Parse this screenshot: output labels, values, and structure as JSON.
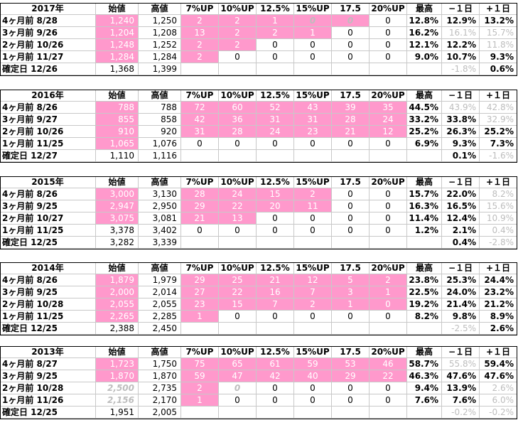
{
  "headers": {
    "start": "始値",
    "high": "高値",
    "up7": "7%UP",
    "up10": "10%UP",
    "up125": "12.5%",
    "up15": "15%UP",
    "up175": "17.5",
    "up20": "20%UP",
    "max": "最高",
    "m1": "−１日",
    "p1": "+１日"
  },
  "blocks": [
    {
      "year": "2017年",
      "rows": [
        {
          "label": "4ヶ月前  8/28",
          "start": "1,240",
          "high": "1,250",
          "up7": "2",
          "up10": "2",
          "up125": "1",
          "up15": "0",
          "up175": "0",
          "up20": "0",
          "max": "12.8%",
          "m1": "12.9%",
          "p1": "13.2%"
        },
        {
          "label": "3ヶ月前  9/26",
          "start": "1,204",
          "high": "1,208",
          "up7": "13",
          "up10": "2",
          "up125": "2",
          "up15": "1",
          "up175": "0",
          "up20": "0",
          "max": "16.2%",
          "m1": "16.1%",
          "p1": "15.7%"
        },
        {
          "label": "2ヶ月前  10/26",
          "start": "1,248",
          "high": "1,252",
          "up7": "2",
          "up10": "2",
          "up125": "0",
          "up15": "0",
          "up175": "0",
          "up20": "0",
          "max": "12.1%",
          "m1": "12.2%",
          "p1": "11.8%"
        },
        {
          "label": "1ヶ月前  11/27",
          "start": "1,284",
          "high": "1,284",
          "up7": "2",
          "up10": "0",
          "up125": "0",
          "up15": "0",
          "up175": "0",
          "up20": "0",
          "max": "9.0%",
          "m1": "10.7%",
          "p1": "9.3%"
        },
        {
          "label": "確定日  12/26",
          "start": "1,368",
          "high": "1,399",
          "up7": "",
          "up10": "",
          "up125": "",
          "up15": "",
          "up175": "",
          "up20": "",
          "max": "",
          "m1": "-1.8%",
          "p1": "0.6%"
        }
      ]
    },
    {
      "year": "2016年",
      "rows": [
        {
          "label": "4ヶ月前  8/26",
          "start": "788",
          "high": "788",
          "up7": "72",
          "up10": "60",
          "up125": "52",
          "up15": "43",
          "up175": "39",
          "up20": "35",
          "max": "44.5%",
          "m1": "43.9%",
          "p1": "42.8%"
        },
        {
          "label": "3ヶ月前  9/27",
          "start": "855",
          "high": "858",
          "up7": "42",
          "up10": "36",
          "up125": "31",
          "up15": "31",
          "up175": "28",
          "up20": "24",
          "max": "33.2%",
          "m1": "33.8%",
          "p1": "32.9%"
        },
        {
          "label": "2ヶ月前  10/26",
          "start": "910",
          "high": "920",
          "up7": "31",
          "up10": "28",
          "up125": "24",
          "up15": "23",
          "up175": "21",
          "up20": "12",
          "max": "25.2%",
          "m1": "26.3%",
          "p1": "25.2%"
        },
        {
          "label": "1ヶ月前  11/25",
          "start": "1,065",
          "high": "1,076",
          "up7": "0",
          "up10": "0",
          "up125": "0",
          "up15": "0",
          "up175": "0",
          "up20": "0",
          "max": "6.9%",
          "m1": "9.3%",
          "p1": "7.3%"
        },
        {
          "label": "確定日  12/27",
          "start": "1,110",
          "high": "1,116",
          "up7": "",
          "up10": "",
          "up125": "",
          "up15": "",
          "up175": "",
          "up20": "",
          "max": "",
          "m1": "0.1%",
          "p1": "-1.6%"
        }
      ]
    },
    {
      "year": "2015年",
      "rows": [
        {
          "label": "4ヶ月前  8/26",
          "start": "3,000",
          "high": "3,130",
          "up7": "28",
          "up10": "24",
          "up125": "15",
          "up15": "2",
          "up175": "0",
          "up20": "0",
          "max": "15.7%",
          "m1": "22.0%",
          "p1": "8.2%"
        },
        {
          "label": "3ヶ月前  9/25",
          "start": "2,947",
          "high": "2,950",
          "up7": "29",
          "up10": "22",
          "up125": "20",
          "up15": "11",
          "up175": "0",
          "up20": "0",
          "max": "16.3%",
          "m1": "16.5%",
          "p1": "15.6%"
        },
        {
          "label": "2ヶ月前  10/27",
          "start": "3,075",
          "high": "3,081",
          "up7": "21",
          "up10": "13",
          "up125": "0",
          "up15": "0",
          "up175": "0",
          "up20": "0",
          "max": "11.4%",
          "m1": "12.4%",
          "p1": "10.9%"
        },
        {
          "label": "1ヶ月前  11/25",
          "start": "3,378",
          "high": "3,402",
          "up7": "0",
          "up10": "0",
          "up125": "0",
          "up15": "0",
          "up175": "0",
          "up20": "0",
          "max": "1.2%",
          "m1": "2.1%",
          "p1": "0.4%"
        },
        {
          "label": "確定日  12/25",
          "start": "3,282",
          "high": "3,339",
          "up7": "",
          "up10": "",
          "up125": "",
          "up15": "",
          "up175": "",
          "up20": "",
          "max": "",
          "m1": "0.4%",
          "p1": "-2.8%"
        }
      ]
    },
    {
      "year": "2014年",
      "rows": [
        {
          "label": "4ヶ月前  8/26",
          "start": "1,879",
          "high": "1,979",
          "up7": "29",
          "up10": "25",
          "up125": "21",
          "up15": "12",
          "up175": "5",
          "up20": "2",
          "max": "23.8%",
          "m1": "25.3%",
          "p1": "24.4%"
        },
        {
          "label": "3ヶ月前  9/25",
          "start": "2,000",
          "high": "2,014",
          "up7": "27",
          "up10": "22",
          "up125": "16",
          "up15": "7",
          "up175": "3",
          "up20": "1",
          "max": "22.5%",
          "m1": "24.0%",
          "p1": "23.2%"
        },
        {
          "label": "2ヶ月前  10/28",
          "start": "2,055",
          "high": "2,055",
          "up7": "23",
          "up10": "15",
          "up125": "7",
          "up15": "2",
          "up175": "1",
          "up20": "0",
          "max": "19.2%",
          "m1": "21.4%",
          "p1": "21.2%"
        },
        {
          "label": "1ヶ月前  11/25",
          "start": "2,265",
          "high": "2,285",
          "up7": "1",
          "up10": "0",
          "up125": "0",
          "up15": "0",
          "up175": "0",
          "up20": "0",
          "max": "8.2%",
          "m1": "9.8%",
          "p1": "8.9%"
        },
        {
          "label": "確定日  12/25",
          "start": "2,388",
          "high": "2,450",
          "up7": "",
          "up10": "",
          "up125": "",
          "up15": "",
          "up175": "",
          "up20": "",
          "max": "",
          "m1": "-2.5%",
          "p1": "2.6%"
        }
      ]
    },
    {
      "year": "2013年",
      "rows": [
        {
          "label": "4ヶ月前  8/27",
          "start": "1,723",
          "high": "1,750",
          "up7": "75",
          "up10": "65",
          "up125": "61",
          "up15": "59",
          "up175": "53",
          "up20": "46",
          "max": "58.7%",
          "m1": "55.8%",
          "p1": "59.4%"
        },
        {
          "label": "3ヶ月前  9/25",
          "start": "1,870",
          "high": "1,870",
          "up7": "59",
          "up10": "47",
          "up125": "42",
          "up15": "40",
          "up175": "29",
          "up20": "22",
          "max": "46.3%",
          "m1": "47.6%",
          "p1": "47.6%"
        },
        {
          "label": "2ヶ月前  10/28",
          "start": "2,500",
          "high": "2,735",
          "up7": "2",
          "up10": "0",
          "up125": "0",
          "up15": "0",
          "up175": "0",
          "up20": "0",
          "max": "9.4%",
          "m1": "13.9%",
          "p1": "2.6%"
        },
        {
          "label": "1ヶ月前  11/26",
          "start": "2,156",
          "high": "2,170",
          "up7": "1",
          "up10": "0",
          "up125": "0",
          "up15": "0",
          "up175": "0",
          "up20": "0",
          "max": "7.6%",
          "m1": "7.6%",
          "p1": "6.0%"
        },
        {
          "label": "確定日  12/25",
          "start": "1,951",
          "high": "2,005",
          "up7": "",
          "up10": "",
          "up125": "",
          "up15": "",
          "up175": "",
          "up20": "",
          "max": "",
          "m1": "-0.2%",
          "p1": "-0.2%"
        }
      ]
    }
  ],
  "colors": {
    "highlight": "#ff99cc",
    "muted": "#bdbdbd",
    "grid": "#c8c8c8"
  }
}
